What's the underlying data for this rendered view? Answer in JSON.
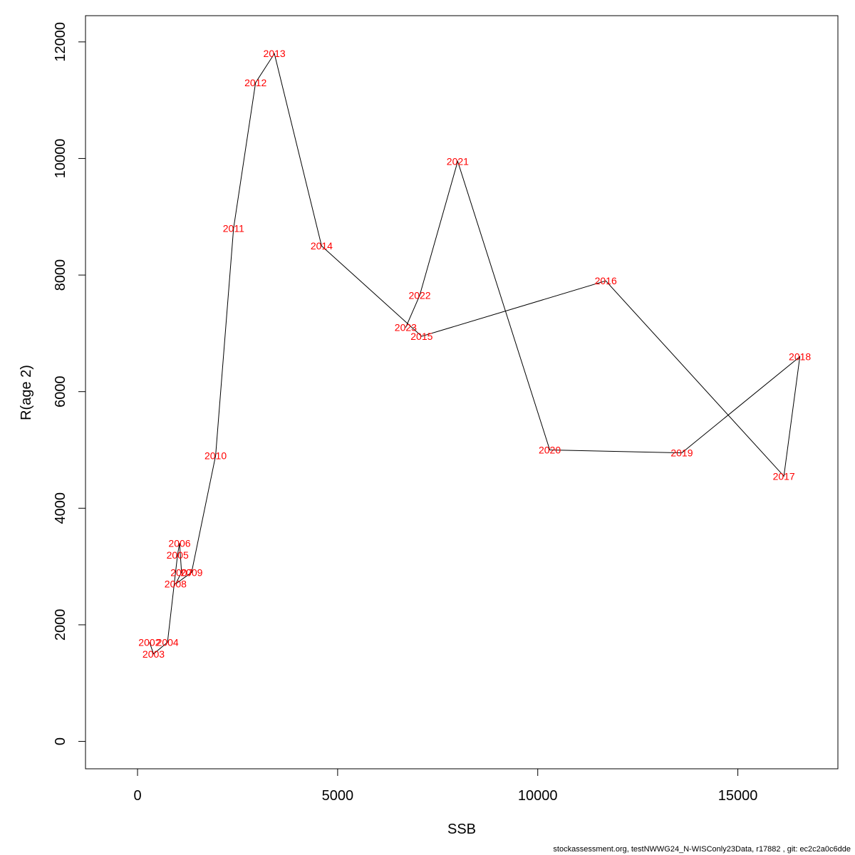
{
  "chart_data": {
    "type": "line",
    "xlabel": "SSB",
    "ylabel": "R(age 2)",
    "xlim": [
      -1300,
      17500
    ],
    "ylim": [
      -470,
      12450
    ],
    "x_ticks": [
      0,
      5000,
      10000,
      15000
    ],
    "y_ticks": [
      0,
      2000,
      4000,
      6000,
      8000,
      10000,
      12000
    ],
    "grid": false,
    "line_color": "#000000",
    "label_color": "#ff0000",
    "points": [
      {
        "year": "2002",
        "x": 300,
        "y": 1700
      },
      {
        "year": "2003",
        "x": 400,
        "y": 1500
      },
      {
        "year": "2004",
        "x": 750,
        "y": 1700
      },
      {
        "year": "2005",
        "x": 1000,
        "y": 3200
      },
      {
        "year": "2006",
        "x": 1050,
        "y": 3400
      },
      {
        "year": "2007",
        "x": 1100,
        "y": 2900
      },
      {
        "year": "2008",
        "x": 950,
        "y": 2700
      },
      {
        "year": "2009",
        "x": 1350,
        "y": 2900
      },
      {
        "year": "2010",
        "x": 1950,
        "y": 4900
      },
      {
        "year": "2011",
        "x": 2400,
        "y": 8800
      },
      {
        "year": "2012",
        "x": 2950,
        "y": 11300
      },
      {
        "year": "2013",
        "x": 3420,
        "y": 11800
      },
      {
        "year": "2014",
        "x": 4600,
        "y": 8500
      },
      {
        "year": "2015",
        "x": 7100,
        "y": 6950
      },
      {
        "year": "2016",
        "x": 11700,
        "y": 7900
      },
      {
        "year": "2017",
        "x": 16150,
        "y": 4550
      },
      {
        "year": "2018",
        "x": 16550,
        "y": 6600
      },
      {
        "year": "2019",
        "x": 13600,
        "y": 4950
      },
      {
        "year": "2020",
        "x": 10300,
        "y": 5000
      },
      {
        "year": "2021",
        "x": 8000,
        "y": 9950
      },
      {
        "year": "2022",
        "x": 7050,
        "y": 7650
      },
      {
        "year": "2023",
        "x": 6700,
        "y": 7100
      }
    ]
  },
  "footer": "stockassessment.org, testNWWG24_N-WISConly23Data, r17882 , git: ec2c2a0c6dde"
}
